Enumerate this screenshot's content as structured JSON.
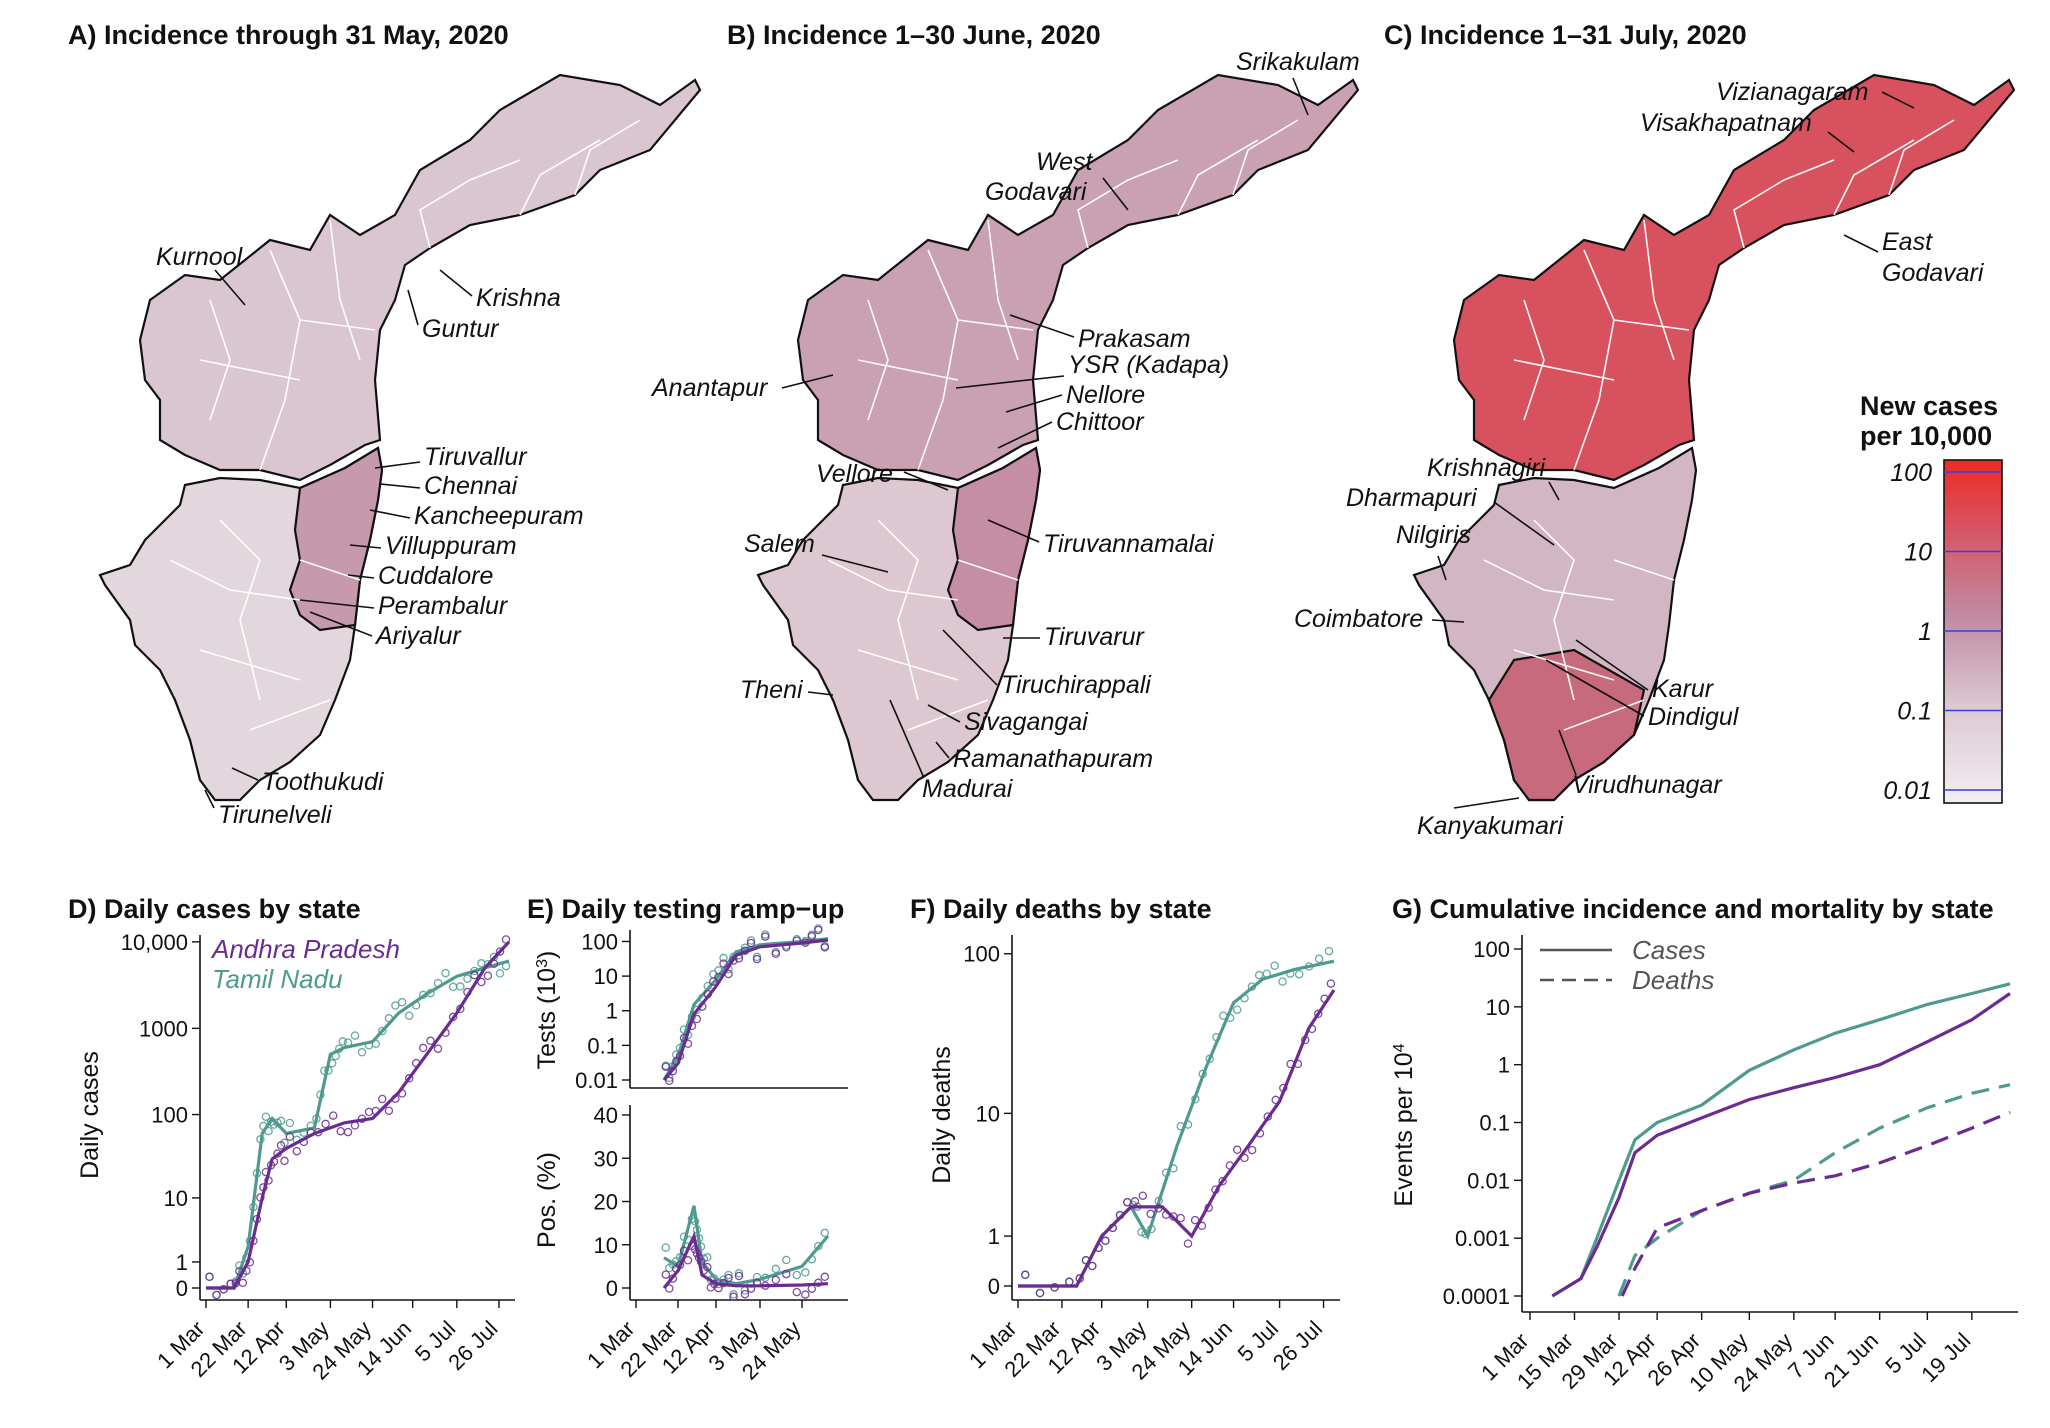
{
  "colors": {
    "andhra": "#6a2c91",
    "tamil": "#4f9a8f",
    "scale_high": "#e8262a",
    "scale_mid": "#b87d95",
    "scale_low": "#ece6ec",
    "tick_blue": "#3d3de0"
  },
  "maps": [
    {
      "title": "A) Incidence through 31 May, 2020",
      "andhra_fill": "#d9c6d0",
      "tamil_fill": "#e3d7de",
      "tamil_east_fill": "#c69aac",
      "labels": [
        "Kurnool",
        "Krishna",
        "Guntur",
        "Tiruvallur",
        "Chennai",
        "Kancheepuram",
        "Villuppuram",
        "Cuddalore",
        "Perambalur",
        "Ariyalur",
        "Toothukudi",
        "Tirunelveli"
      ]
    },
    {
      "title": "B) Incidence 1–30 June, 2020",
      "andhra_fill": "#c9a1b3",
      "tamil_fill": "#ddc8d1",
      "tamil_east_fill": "#c58ea4",
      "labels": [
        "Srikakulam",
        "West",
        "Godavari",
        "Prakasam",
        "YSR (Kadapa)",
        "Nellore",
        "Chittoor",
        "Anantapur",
        "Vellore",
        "Salem",
        "Tiruvannamalai",
        "Tiruvarur",
        "Tiruchirappali",
        "Theni",
        "Sivagangai",
        "Ramanathapuram",
        "Madurai"
      ]
    },
    {
      "title": "C) Incidence 1–31 July, 2020",
      "andhra_fill": "#d7525e",
      "tamil_fill": "#d2b6c3",
      "tamil_east_fill": "#c86a7e",
      "labels": [
        "Vizianagaram",
        "Visakhapatnam",
        "East",
        "Godavari",
        "Krishnagiri",
        "Dharmapuri",
        "Nilgiris",
        "Coimbatore",
        "Karur",
        "Dindigul",
        "Virudhunagar",
        "Kanyakumari"
      ]
    }
  ],
  "colorbar": {
    "title_line1": "New cases",
    "title_line2": "per 10,000",
    "ticks": [
      "100",
      "10",
      "1",
      "0.1",
      "0.01"
    ]
  },
  "chart_data": [
    {
      "type": "scatter",
      "title": "D) Daily cases by state",
      "ylabel": "Daily cases",
      "xlabel": "",
      "scale": "log (x+1)",
      "xticks": [
        "1 Mar",
        "22 Mar",
        "12 Apr",
        "3 May",
        "24 May",
        "14 Jun",
        "5 Jul",
        "26 Jul"
      ],
      "yticks": [
        "10,000",
        "1000",
        "100",
        "10",
        "1",
        "0"
      ],
      "legend": [
        "Andhra Pradesh",
        "Tamil Nadu"
      ],
      "series": [
        {
          "name": "Andhra Pradesh",
          "x": [
            "1 Mar",
            "15 Mar",
            "22 Mar",
            "29 Mar",
            "5 Apr",
            "12 Apr",
            "26 Apr",
            "10 May",
            "24 May",
            "7 Jun",
            "21 Jun",
            "5 Jul",
            "19 Jul",
            "31 Jul"
          ],
          "y": [
            0,
            0,
            1,
            10,
            30,
            40,
            60,
            80,
            90,
            180,
            500,
            1500,
            5000,
            10000
          ]
        },
        {
          "name": "Tamil Nadu",
          "x": [
            "1 Mar",
            "15 Mar",
            "22 Mar",
            "29 Mar",
            "5 Apr",
            "12 Apr",
            "26 Apr",
            "3 May",
            "10 May",
            "24 May",
            "7 Jun",
            "21 Jun",
            "5 Jul",
            "19 Jul",
            "31 Jul"
          ],
          "y": [
            0,
            0,
            2,
            60,
            90,
            60,
            70,
            500,
            600,
            700,
            1500,
            2500,
            4000,
            5000,
            6000
          ]
        }
      ]
    },
    {
      "type": "scatter",
      "title": "E) Daily testing ramp−up",
      "subplots": [
        {
          "ylabel": "Tests (10",
          "ylabel_sup": "3",
          "ylabel_end": ")",
          "yticks": [
            "100",
            "10",
            "1",
            "0.1",
            "0.01"
          ],
          "series": [
            {
              "name": "Andhra Pradesh",
              "x": [
                "15 Mar",
                "22 Mar",
                "1 Apr",
                "12 Apr",
                "22 Apr",
                "3 May",
                "24 May",
                "7 Jun"
              ],
              "y": [
                0.01,
                0.03,
                0.8,
                5,
                40,
                70,
                90,
                110
              ]
            },
            {
              "name": "Tamil Nadu",
              "x": [
                "15 Mar",
                "22 Mar",
                "1 Apr",
                "12 Apr",
                "22 Apr",
                "3 May",
                "24 May",
                "7 Jun"
              ],
              "y": [
                0.01,
                0.05,
                1.5,
                8,
                50,
                80,
                100,
                120
              ]
            }
          ]
        },
        {
          "ylabel": "Pos. (%)",
          "yticks": [
            "40",
            "30",
            "20",
            "10",
            "0"
          ],
          "ylim": [
            0,
            40
          ],
          "series": [
            {
              "name": "Andhra Pradesh",
              "x": [
                "15 Mar",
                "22 Mar",
                "1 Apr",
                "5 Apr",
                "12 Apr",
                "22 Apr",
                "3 May",
                "24 May",
                "7 Jun"
              ],
              "y": [
                0,
                4,
                12,
                3,
                1,
                0.5,
                0.5,
                0.7,
                1
              ]
            },
            {
              "name": "Tamil Nadu",
              "x": [
                "15 Mar",
                "22 Mar",
                "1 Apr",
                "5 Apr",
                "12 Apr",
                "22 Apr",
                "3 May",
                "24 May",
                "7 Jun"
              ],
              "y": [
                7,
                5,
                19,
                6,
                2,
                1,
                2,
                5,
                12
              ]
            }
          ]
        }
      ],
      "xticks": [
        "1 Mar",
        "22 Mar",
        "12 Apr",
        "3 May",
        "24 May"
      ]
    },
    {
      "type": "scatter",
      "title": "F) Daily deaths by state",
      "ylabel": "Daily deaths",
      "xticks": [
        "1 Mar",
        "22 Mar",
        "12 Apr",
        "3 May",
        "24 May",
        "14 Jun",
        "5 Jul",
        "26 Jul"
      ],
      "yticks": [
        "100",
        "10",
        "1",
        "0"
      ],
      "series": [
        {
          "name": "Andhra Pradesh",
          "x": [
            "1 Mar",
            "29 Mar",
            "12 Apr",
            "26 Apr",
            "10 May",
            "24 May",
            "7 Jun",
            "21 Jun",
            "5 Jul",
            "19 Jul",
            "31 Jul"
          ],
          "y": [
            0,
            0,
            1,
            2,
            2,
            1,
            3,
            6,
            12,
            35,
            60
          ]
        },
        {
          "name": "Tamil Nadu",
          "x": [
            "1 Mar",
            "29 Mar",
            "12 Apr",
            "26 Apr",
            "3 May",
            "17 May",
            "31 May",
            "14 Jun",
            "28 Jun",
            "12 Jul",
            "31 Jul"
          ],
          "y": [
            0,
            0,
            1,
            2,
            1,
            6,
            20,
            50,
            70,
            80,
            90
          ]
        }
      ]
    },
    {
      "type": "line",
      "title": "G) Cumulative incidence and mortality by state",
      "ylabel": "Events per 10",
      "ylabel_sup": "4",
      "xticks": [
        "1 Mar",
        "15 Mar",
        "29 Mar",
        "12 Apr",
        "26 Apr",
        "10 May",
        "24 May",
        "7 Jun",
        "21 Jun",
        "5 Jul",
        "19 Jul"
      ],
      "yticks": [
        "100",
        "10",
        "1",
        "0.1",
        "0.01",
        "0.001",
        "0.0001"
      ],
      "legend": [
        "Cases",
        "Deaths"
      ],
      "series": [
        {
          "name": "Cases",
          "state": "Tamil Nadu",
          "x": [
            "8 Mar",
            "17 Mar",
            "22 Mar",
            "29 Mar",
            "5 Apr",
            "12 Apr",
            "26 Apr",
            "10 May",
            "24 May",
            "7 Jun",
            "21 Jun",
            "5 Jul",
            "19 Jul",
            "31 Jul"
          ],
          "y": [
            0.0001,
            0.0002,
            0.001,
            0.01,
            0.05,
            0.1,
            0.2,
            0.8,
            1.8,
            3.5,
            6,
            11,
            17,
            25
          ]
        },
        {
          "name": "Cases",
          "state": "Andhra Pradesh",
          "x": [
            "8 Mar",
            "17 Mar",
            "22 Mar",
            "29 Mar",
            "5 Apr",
            "12 Apr",
            "26 Apr",
            "10 May",
            "24 May",
            "7 Jun",
            "21 Jun",
            "5 Jul",
            "19 Jul",
            "31 Jul"
          ],
          "y": [
            0.0001,
            0.0002,
            0.0007,
            0.005,
            0.03,
            0.06,
            0.12,
            0.25,
            0.4,
            0.6,
            1,
            2.5,
            6,
            17
          ]
        },
        {
          "name": "Deaths",
          "state": "Tamil Nadu",
          "x": [
            "29 Mar",
            "5 Apr",
            "12 Apr",
            "26 Apr",
            "10 May",
            "24 May",
            "7 Jun",
            "21 Jun",
            "5 Jul",
            "19 Jul",
            "31 Jul"
          ],
          "y": [
            0.0001,
            0.0005,
            0.001,
            0.003,
            0.006,
            0.01,
            0.03,
            0.08,
            0.18,
            0.32,
            0.45
          ]
        },
        {
          "name": "Deaths",
          "state": "Andhra Pradesh",
          "x": [
            "1 Apr",
            "5 Apr",
            "12 Apr",
            "26 Apr",
            "10 May",
            "24 May",
            "7 Jun",
            "21 Jun",
            "5 Jul",
            "19 Jul",
            "31 Jul"
          ],
          "y": [
            0.0001,
            0.0003,
            0.0015,
            0.003,
            0.006,
            0.009,
            0.012,
            0.02,
            0.04,
            0.08,
            0.15
          ]
        }
      ]
    }
  ]
}
